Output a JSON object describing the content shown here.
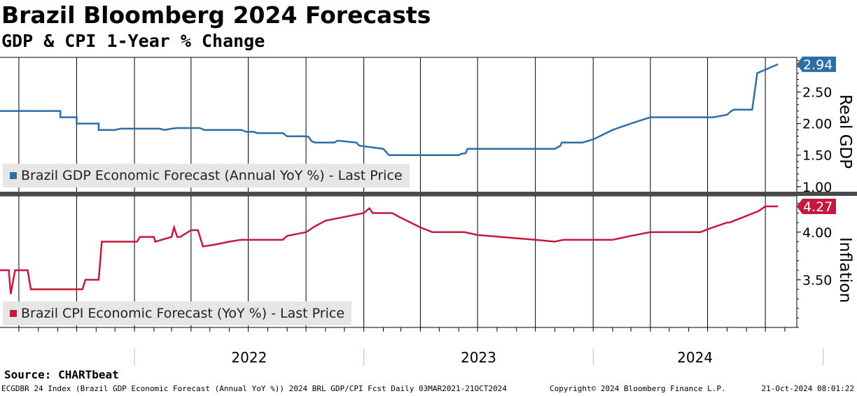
{
  "title": "Brazil Bloomberg 2024 Forecasts",
  "subtitle": "GDP & CPI 1-Year % Change",
  "source": "Source: CHARTbeat",
  "footer": {
    "left": "ECGDBR 24 Index (Brazil GDP Economic Forecast (Annual YoY %)) 2024 BRL GDP/CPI Fcst  Daily 03MAR2021-21OCT2024",
    "middle": "Copyright© 2024 Bloomberg Finance L.P.",
    "right": "21-Oct-2024 08:01:22"
  },
  "colors": {
    "gdp": "#2e6ea6",
    "cpi": "#c4183c",
    "grid": "#000000",
    "legend_bg": "#e6e6e6"
  },
  "chart_data": [
    {
      "type": "line",
      "ylabel": "Real GDP",
      "ylim": [
        0.92,
        3.05
      ],
      "yticks": [
        1.0,
        1.5,
        2.0,
        2.5
      ],
      "ytick_labels": [
        "1.00",
        "1.50",
        "2.00",
        "2.50"
      ],
      "last_value_label": "2.94",
      "legend_position": "bottom-left",
      "grid": true,
      "series": [
        {
          "name": "Brazil GDP Economic Forecast (Annual YoY %) - Last Price",
          "x": [
            "2021-06-01",
            "2021-09-05",
            "2021-09-05",
            "2021-10-01",
            "2021-10-01",
            "2021-11-05",
            "2021-11-05",
            "2021-12-01",
            "2021-12-10",
            "2022-02-10",
            "2022-02-18",
            "2022-03-01",
            "2022-03-10",
            "2022-04-15",
            "2022-04-22",
            "2022-06-20",
            "2022-06-28",
            "2022-07-10",
            "2022-07-15",
            "2022-08-25",
            "2022-09-01",
            "2022-10-01",
            "2022-10-05",
            "2022-10-10",
            "2022-10-15",
            "2022-11-15",
            "2022-11-20",
            "2022-12-20",
            "2022-12-25",
            "2023-02-01",
            "2023-02-10",
            "2023-06-01",
            "2023-06-05",
            "2023-06-12",
            "2023-06-15",
            "2023-11-01",
            "2023-11-10",
            "2023-11-12",
            "2023-12-15",
            "2024-01-01",
            "2024-02-01",
            "2024-03-01",
            "2024-04-01",
            "2024-06-01",
            "2024-07-10",
            "2024-08-01",
            "2024-08-01",
            "2024-08-08",
            "2024-08-12",
            "2024-08-12",
            "2024-08-20",
            "2024-09-10",
            "2024-09-18",
            "2024-10-21"
          ],
          "values": [
            2.2,
            2.2,
            2.1,
            2.1,
            2.0,
            2.0,
            1.9,
            1.9,
            1.92,
            1.92,
            1.9,
            1.92,
            1.93,
            1.93,
            1.9,
            1.9,
            1.87,
            1.87,
            1.85,
            1.85,
            1.8,
            1.8,
            1.79,
            1.72,
            1.7,
            1.7,
            1.73,
            1.7,
            1.65,
            1.6,
            1.5,
            1.5,
            1.52,
            1.53,
            1.6,
            1.6,
            1.65,
            1.7,
            1.7,
            1.75,
            1.9,
            2.0,
            2.1,
            2.1,
            2.1,
            2.14,
            2.14,
            2.2,
            2.22,
            2.22,
            2.22,
            2.22,
            2.8,
            2.94
          ],
          "x_note": "dates"
        }
      ]
    },
    {
      "type": "line",
      "ylabel": "Inflation",
      "ylim": [
        3.0,
        4.38
      ],
      "yticks": [
        3.5,
        4.0
      ],
      "ytick_labels": [
        "3.50",
        "4.00"
      ],
      "last_value_label": "4.27",
      "legend_position": "bottom-left",
      "grid": true,
      "series": [
        {
          "name": "Brazil CPI Economic Forecast (YoY %) - Last Price",
          "x": [
            "2021-06-01",
            "2021-06-15",
            "2021-06-18",
            "2021-06-25",
            "2021-07-15",
            "2021-07-20",
            "2021-07-24",
            "2021-08-05",
            "2021-10-10",
            "2021-10-15",
            "2021-11-05",
            "2021-11-10",
            "2022-01-05",
            "2022-01-10",
            "2022-02-01",
            "2022-02-03",
            "2022-03-01",
            "2022-03-05",
            "2022-03-10",
            "2022-03-15",
            "2022-04-01",
            "2022-04-12",
            "2022-04-20",
            "2022-05-10",
            "2022-06-01",
            "2022-06-20",
            "2022-08-25",
            "2022-09-01",
            "2022-10-01",
            "2022-10-15",
            "2022-11-01",
            "2023-01-01",
            "2023-01-10",
            "2023-01-15",
            "2023-02-15",
            "2023-03-01",
            "2023-04-01",
            "2023-04-20",
            "2023-05-10",
            "2023-06-10",
            "2023-07-01",
            "2023-10-01",
            "2023-11-01",
            "2023-11-15",
            "2024-02-01",
            "2024-03-01",
            "2024-04-01",
            "2024-06-20",
            "2024-07-01",
            "2024-08-01",
            "2024-08-05",
            "2024-09-20",
            "2024-10-01",
            "2024-10-21"
          ],
          "values": [
            3.6,
            3.6,
            3.35,
            3.6,
            3.6,
            3.4,
            3.4,
            3.4,
            3.4,
            3.5,
            3.5,
            3.9,
            3.9,
            3.95,
            3.95,
            3.9,
            3.95,
            4.05,
            3.95,
            3.95,
            4.02,
            4.02,
            3.85,
            3.87,
            3.9,
            3.92,
            3.92,
            3.96,
            4.0,
            4.06,
            4.12,
            4.2,
            4.25,
            4.2,
            4.2,
            4.15,
            4.05,
            4.0,
            4.0,
            4.0,
            3.97,
            3.92,
            3.9,
            3.92,
            3.92,
            3.96,
            4.0,
            4.0,
            4.03,
            4.1,
            4.1,
            4.22,
            4.27,
            4.27
          ],
          "x_note": "dates"
        }
      ]
    }
  ],
  "x_axis": {
    "year_labels": [
      "2022",
      "2023",
      "2024"
    ],
    "range": [
      "2021-06-01",
      "2024-11-20"
    ]
  }
}
